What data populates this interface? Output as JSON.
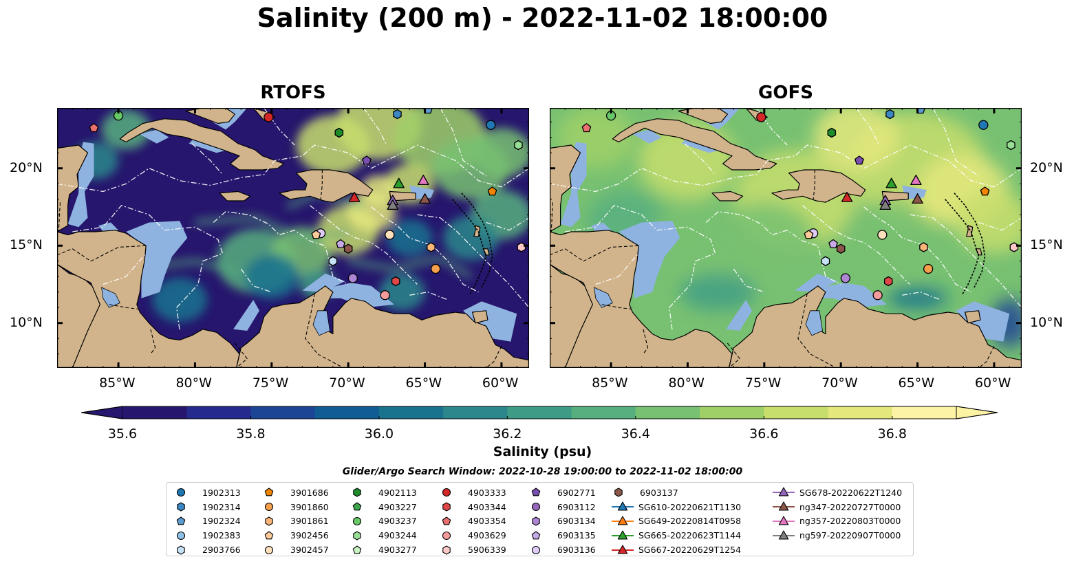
{
  "figure": {
    "title": "Salinity (200 m) - 2022-11-02 18:00:00",
    "panels": [
      {
        "title": "RTOFS",
        "scheme": "rtofs"
      },
      {
        "title": "GOFS",
        "scheme": "gofs"
      }
    ],
    "lon_labels": [
      "85°W",
      "80°W",
      "75°W",
      "70°W",
      "65°W",
      "60°W"
    ],
    "lon_values": [
      -85,
      -80,
      -75,
      -70,
      -65,
      -60
    ],
    "lat_labels": [
      "20°N",
      "15°N",
      "10°N"
    ],
    "lat_values": [
      20,
      15,
      10
    ],
    "lon_range": [
      -89,
      -58.2
    ],
    "lat_range": [
      7.1,
      23.9
    ]
  },
  "colorbar": {
    "label": "Salinity (psu)",
    "ticks": [
      "35.6",
      "35.8",
      "36.0",
      "36.2",
      "36.4",
      "36.6",
      "36.8"
    ],
    "tick_values": [
      35.6,
      35.8,
      36.0,
      36.2,
      36.4,
      36.6,
      36.8
    ],
    "min": 35.6,
    "max": 36.9,
    "colors": [
      "#26166d",
      "#252a8e",
      "#1d4596",
      "#115d93",
      "#1a738e",
      "#2b878b",
      "#3e9c86",
      "#57af7f",
      "#78c172",
      "#9fd068",
      "#c7dd6c",
      "#e4e77c",
      "#fdf3a5"
    ],
    "extend": "both"
  },
  "search_window": "Glider/Argo Search Window: 2022-10-28 19:00:00 to 2022-11-02 18:00:00",
  "map_colors": {
    "land": "#d2b48c",
    "shallow": "#8fb3e0"
  },
  "legend": [
    [
      {
        "label": "1902313",
        "marker": "circle",
        "color": "#1f77b4"
      },
      {
        "label": "1902314",
        "marker": "hexagon",
        "color": "#3a87c3"
      },
      {
        "label": "1902324",
        "marker": "pentagon",
        "color": "#5d9cd3"
      },
      {
        "label": "1902383",
        "marker": "circle",
        "color": "#8ec0e6"
      },
      {
        "label": "2903766",
        "marker": "hexagon",
        "color": "#c6e2f7"
      }
    ],
    [
      {
        "label": "3901686",
        "marker": "pentagon",
        "color": "#f28500"
      },
      {
        "label": "3901860",
        "marker": "circle",
        "color": "#f6a04d"
      },
      {
        "label": "3901861",
        "marker": "hexagon",
        "color": "#fab579"
      },
      {
        "label": "3902456",
        "marker": "pentagon",
        "color": "#fdca99"
      },
      {
        "label": "3902457",
        "marker": "circle",
        "color": "#ffe0bd"
      }
    ],
    [
      {
        "label": "4902113",
        "marker": "hexagon",
        "color": "#1e8c2a"
      },
      {
        "label": "4903227",
        "marker": "pentagon",
        "color": "#3ba84a"
      },
      {
        "label": "4903237",
        "marker": "circle",
        "color": "#66c866"
      },
      {
        "label": "4903244",
        "marker": "hexagon",
        "color": "#98de95"
      },
      {
        "label": "4903277",
        "marker": "pentagon",
        "color": "#c8f2c2"
      }
    ],
    [
      {
        "label": "4903333",
        "marker": "circle",
        "color": "#d62728"
      },
      {
        "label": "4903344",
        "marker": "hexagon",
        "color": "#e04848"
      },
      {
        "label": "4903354",
        "marker": "pentagon",
        "color": "#ea7070"
      },
      {
        "label": "4903629",
        "marker": "circle",
        "color": "#f49c9c"
      },
      {
        "label": "5906339",
        "marker": "hexagon",
        "color": "#fcc8c8"
      }
    ],
    [
      {
        "label": "6902771",
        "marker": "pentagon",
        "color": "#7a4eb0"
      },
      {
        "label": "6903112",
        "marker": "circle",
        "color": "#9467bd"
      },
      {
        "label": "6903134",
        "marker": "hexagon",
        "color": "#ac86d2"
      },
      {
        "label": "6903135",
        "marker": "pentagon",
        "color": "#c6a9e6"
      },
      {
        "label": "6903136",
        "marker": "circle",
        "color": "#e0ccf7"
      }
    ],
    [
      {
        "label": "6903137",
        "marker": "hexagon",
        "color": "#8c564b"
      },
      {
        "label": "SG610-20220621T1130",
        "marker": "triangle-line",
        "color": "#1f77b4"
      },
      {
        "label": "SG649-20220814T0958",
        "marker": "triangle-line",
        "color": "#ff7f0e"
      },
      {
        "label": "SG665-20220623T1144",
        "marker": "triangle-line",
        "color": "#2ca02c"
      },
      {
        "label": "SG667-20220629T1254",
        "marker": "triangle-line",
        "color": "#d62728"
      }
    ],
    [
      {
        "label": "SG678-20220622T1240",
        "marker": "triangle-line",
        "color": "#9467bd"
      },
      {
        "label": "ng347-20220727T0000",
        "marker": "triangle-line",
        "color": "#8c564b"
      },
      {
        "label": "ng357-20220803T0000",
        "marker": "triangle-line",
        "color": "#e377c2"
      },
      {
        "label": "ng597-20220907T0000",
        "marker": "triangle-line",
        "color": "#7f7f7f"
      }
    ]
  ],
  "observations": [
    {
      "lon": -85,
      "lat": 23.4,
      "marker": "circle",
      "color": "#66c866"
    },
    {
      "lon": -86.6,
      "lat": 22.6,
      "marker": "pentagon",
      "color": "#ea7070"
    },
    {
      "lon": -75.2,
      "lat": 23.3,
      "marker": "circle",
      "color": "#d62728"
    },
    {
      "lon": -66.8,
      "lat": 23.5,
      "marker": "hexagon",
      "color": "#3a87c3"
    },
    {
      "lon": -64.8,
      "lat": 23.8,
      "marker": "pentagon",
      "color": "#5d9cd3"
    },
    {
      "lon": -60.7,
      "lat": 22.8,
      "marker": "circle",
      "color": "#1f77b4"
    },
    {
      "lon": -58.9,
      "lat": 21.5,
      "marker": "hexagon",
      "color": "#98de95"
    },
    {
      "lon": -70.6,
      "lat": 22.3,
      "marker": "hexagon",
      "color": "#1e8c2a"
    },
    {
      "lon": -68.8,
      "lat": 20.5,
      "marker": "pentagon",
      "color": "#7a4eb0"
    },
    {
      "lon": -60.6,
      "lat": 18.5,
      "marker": "pentagon",
      "color": "#f28500"
    },
    {
      "lon": -69.6,
      "lat": 18.1,
      "marker": "triangle",
      "color": "#d62728"
    },
    {
      "lon": -66.7,
      "lat": 19.0,
      "marker": "triangle",
      "color": "#2ca02c"
    },
    {
      "lon": -67.1,
      "lat": 17.9,
      "marker": "triangle",
      "color": "#9467bd"
    },
    {
      "lon": -67.1,
      "lat": 17.6,
      "marker": "triangle",
      "color": "#7f7f7f"
    },
    {
      "lon": -65.1,
      "lat": 19.2,
      "marker": "triangle",
      "color": "#e377c2"
    },
    {
      "lon": -65.0,
      "lat": 18.0,
      "marker": "triangle",
      "color": "#8c564b"
    },
    {
      "lon": -71.8,
      "lat": 15.8,
      "marker": "circle",
      "color": "#e0ccf7"
    },
    {
      "lon": -72.1,
      "lat": 15.7,
      "marker": "pentagon",
      "color": "#fdca99"
    },
    {
      "lon": -70.5,
      "lat": 15.1,
      "marker": "pentagon",
      "color": "#c6a9e6"
    },
    {
      "lon": -70.0,
      "lat": 14.8,
      "marker": "hexagon",
      "color": "#8c564b"
    },
    {
      "lon": -71.0,
      "lat": 14.0,
      "marker": "hexagon",
      "color": "#c6e2f7"
    },
    {
      "lon": -67.3,
      "lat": 15.7,
      "marker": "circle",
      "color": "#ffe0bd"
    },
    {
      "lon": -64.6,
      "lat": 14.9,
      "marker": "hexagon",
      "color": "#fab579"
    },
    {
      "lon": -64.3,
      "lat": 13.5,
      "marker": "circle",
      "color": "#f6a04d"
    },
    {
      "lon": -58.7,
      "lat": 14.9,
      "marker": "hexagon",
      "color": "#fcc8c8"
    },
    {
      "lon": -69.7,
      "lat": 12.9,
      "marker": "circle",
      "color": "#ac86d2"
    },
    {
      "lon": -66.9,
      "lat": 12.7,
      "marker": "hexagon",
      "color": "#e04848"
    },
    {
      "lon": -67.6,
      "lat": 11.8,
      "marker": "circle",
      "color": "#f49c9c"
    }
  ]
}
